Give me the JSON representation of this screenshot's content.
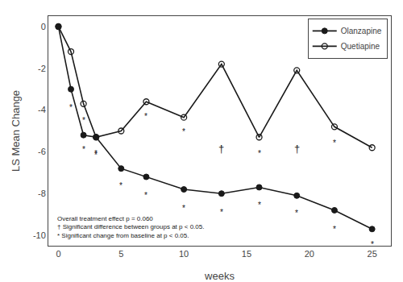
{
  "chart_data": {
    "type": "line",
    "xlabel": "weeks",
    "ylabel": "LS Mean Change",
    "series": [
      {
        "name": "Olanzapine",
        "color": "#1a1a1a",
        "marker": "circle",
        "line_style": "solid",
        "x": [
          0,
          1,
          2,
          3,
          5,
          7,
          10,
          13,
          16,
          19,
          22,
          25
        ],
        "values": [
          0,
          -3.0,
          -5.2,
          -5.3,
          -6.8,
          -7.2,
          -7.8,
          -8.0,
          -7.7,
          -8.1,
          -8.8,
          -9.7
        ]
      },
      {
        "name": "Quetiapine",
        "color": "#1a1a1a",
        "marker": "circle-open",
        "line_style": "solid",
        "x": [
          0,
          1,
          2,
          3,
          5,
          7,
          10,
          13,
          16,
          19,
          22,
          25
        ],
        "values": [
          0,
          -1.2,
          -3.7,
          -5.3,
          -5.0,
          -3.6,
          -4.35,
          -1.8,
          -5.3,
          -2.1,
          -4.8,
          -5.8
        ]
      }
    ],
    "annotations": [
      {
        "text": "*",
        "x": 1,
        "y": -3.6
      },
      {
        "text": "*",
        "x": 2,
        "y": -5.6
      },
      {
        "text": "*",
        "x": 3,
        "y": -5.8
      },
      {
        "text": "*",
        "x": 5,
        "y": -7.35
      },
      {
        "text": "*",
        "x": 7,
        "y": -7.8
      },
      {
        "text": "*",
        "x": 10,
        "y": -8.4
      },
      {
        "text": "*",
        "x": 13,
        "y": -8.6
      },
      {
        "text": "*",
        "x": 16,
        "y": -8.25
      },
      {
        "text": "*",
        "x": 19,
        "y": -8.65
      },
      {
        "text": "*",
        "x": 22,
        "y": -9.4
      },
      {
        "text": "*",
        "x": 25,
        "y": -10.15
      },
      {
        "text": "*",
        "x": 2,
        "y": -4.2
      },
      {
        "text": "*",
        "x": 3,
        "y": -5.85
      },
      {
        "text": "*",
        "x": 7,
        "y": -4.0
      },
      {
        "text": "*",
        "x": 10,
        "y": -4.75
      },
      {
        "text": "*",
        "x": 16,
        "y": -5.8
      },
      {
        "text": "*",
        "x": 22,
        "y": -5.3
      },
      {
        "text": "†",
        "x": 13,
        "y": -5.5
      },
      {
        "text": "†",
        "x": 19,
        "y": -5.5
      },
      {
        "text": "Overall treatment effect p = 0.060\n† Significant difference between groups at p < 0.05.\n* Significant change from baseline at p < 0.05."
      }
    ],
    "xlim": [
      -0.8,
      26.5
    ],
    "xticks": [
      0,
      5,
      10,
      15,
      20,
      25
    ],
    "ylim": [
      -10.5,
      0.5
    ],
    "yticks": [
      0,
      -2,
      -4,
      -6,
      -8,
      -10
    ],
    "grid": false,
    "legend": "upper right"
  }
}
